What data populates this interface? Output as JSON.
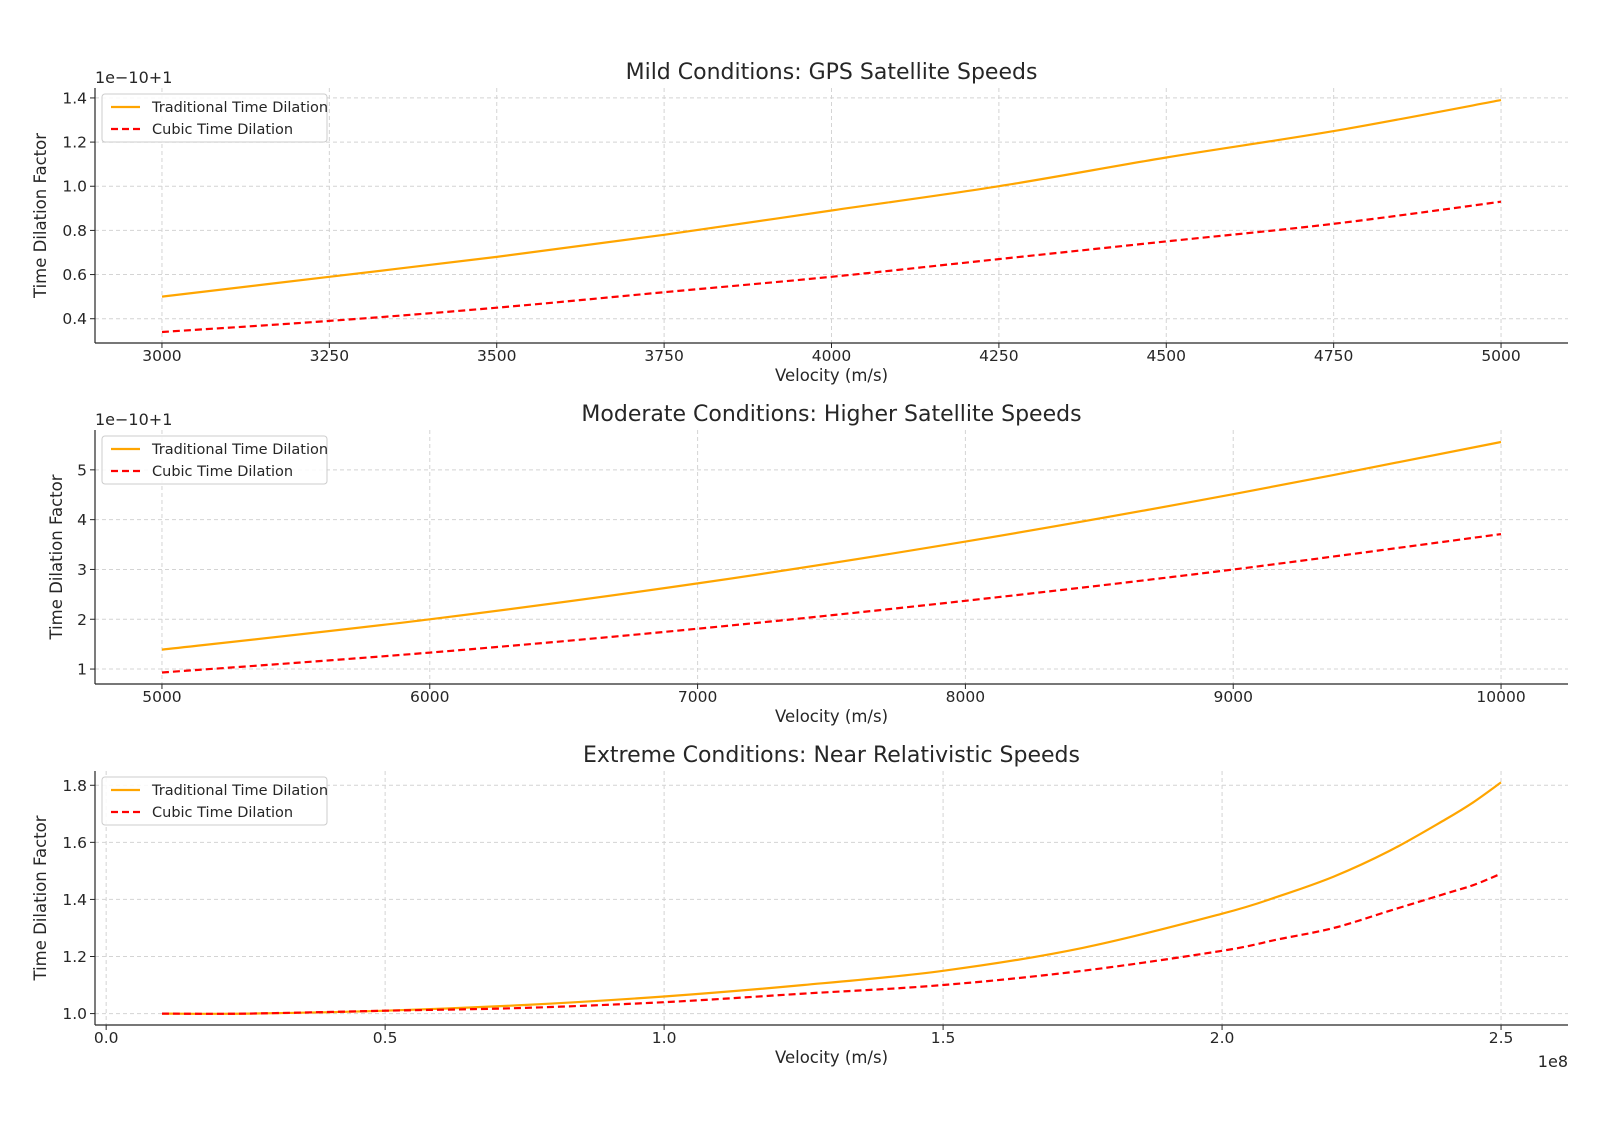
{
  "chart_data": [
    {
      "type": "line",
      "title": "Mild Conditions: GPS Satellite Speeds",
      "xlabel": "Velocity (m/s)",
      "ylabel": "Time Dilation Factor",
      "y_offset_text": "1e−10+1",
      "x_offset_text": "",
      "x_scale": "linear",
      "xlim": [
        2900,
        5100
      ],
      "ylim": [
        0.29,
        1.445
      ],
      "xticks": [
        3000,
        3250,
        3500,
        3750,
        4000,
        4250,
        4500,
        4750,
        5000
      ],
      "xtick_labels": [
        "3000",
        "3250",
        "3500",
        "3750",
        "4000",
        "4250",
        "4500",
        "4750",
        "5000"
      ],
      "yticks": [
        0.4,
        0.6,
        0.8,
        1.0,
        1.2,
        1.4
      ],
      "ytick_labels": [
        "0.4",
        "0.6",
        "0.8",
        "1.0",
        "1.2",
        "1.4"
      ],
      "grid": true,
      "legend_position": "top-left",
      "x": [
        3000,
        3250,
        3500,
        3750,
        4000,
        4250,
        4500,
        4750,
        5000
      ],
      "series": [
        {
          "name": "Traditional Time Dilation",
          "color": "#ffa500",
          "style": "solid",
          "values": [
            0.5,
            0.59,
            0.68,
            0.78,
            0.89,
            1.0,
            1.13,
            1.25,
            1.39
          ]
        },
        {
          "name": "Cubic Time Dilation",
          "color": "#ff0000",
          "style": "dashed",
          "values": [
            0.34,
            0.39,
            0.45,
            0.52,
            0.59,
            0.67,
            0.75,
            0.83,
            0.93
          ]
        }
      ]
    },
    {
      "type": "line",
      "title": "Moderate Conditions: Higher Satellite Speeds",
      "xlabel": "Velocity (m/s)",
      "ylabel": "Time Dilation Factor",
      "y_offset_text": "1e−10+1",
      "x_offset_text": "",
      "x_scale": "linear",
      "xlim": [
        4750,
        10250
      ],
      "ylim": [
        0.7,
        5.8
      ],
      "xticks": [
        5000,
        6000,
        7000,
        8000,
        9000,
        10000
      ],
      "xtick_labels": [
        "5000",
        "6000",
        "7000",
        "8000",
        "9000",
        "10000"
      ],
      "yticks": [
        1,
        2,
        3,
        4,
        5
      ],
      "ytick_labels": [
        "1",
        "2",
        "3",
        "4",
        "5"
      ],
      "grid": true,
      "legend_position": "top-left",
      "x": [
        5000,
        6000,
        7000,
        8000,
        9000,
        10000
      ],
      "series": [
        {
          "name": "Traditional Time Dilation",
          "color": "#ffa500",
          "style": "solid",
          "values": [
            1.39,
            2.0,
            2.72,
            3.56,
            4.51,
            5.56
          ]
        },
        {
          "name": "Cubic Time Dilation",
          "color": "#ff0000",
          "style": "dashed",
          "values": [
            0.93,
            1.33,
            1.81,
            2.37,
            3.0,
            3.71
          ]
        }
      ]
    },
    {
      "type": "line",
      "title": "Extreme Conditions: Near Relativistic Speeds",
      "xlabel": "Velocity (m/s)",
      "ylabel": "Time Dilation Factor",
      "y_offset_text": "",
      "x_offset_text": "1e8",
      "x_scale": "linear",
      "xlim": [
        -0.02,
        2.62
      ],
      "ylim": [
        0.96,
        1.85
      ],
      "xticks": [
        0.0,
        0.5,
        1.0,
        1.5,
        2.0,
        2.5
      ],
      "xtick_labels": [
        "0.0",
        "0.5",
        "1.0",
        "1.5",
        "2.0",
        "2.5"
      ],
      "yticks": [
        1.0,
        1.2,
        1.4,
        1.6,
        1.8
      ],
      "ytick_labels": [
        "1.0",
        "1.2",
        "1.4",
        "1.6",
        "1.8"
      ],
      "grid": true,
      "legend_position": "top-left",
      "x": [
        0.1,
        0.25,
        0.5,
        0.75,
        1.0,
        1.25,
        1.5,
        1.75,
        2.0,
        2.1,
        2.2,
        2.3,
        2.4,
        2.45,
        2.5
      ],
      "series": [
        {
          "name": "Traditional Time Dilation",
          "color": "#ffa500",
          "style": "solid",
          "values": [
            1.0,
            1.0,
            1.01,
            1.03,
            1.06,
            1.1,
            1.15,
            1.23,
            1.35,
            1.41,
            1.48,
            1.57,
            1.68,
            1.74,
            1.81
          ]
        },
        {
          "name": "Cubic Time Dilation",
          "color": "#ff0000",
          "style": "dashed",
          "values": [
            1.0,
            1.0,
            1.01,
            1.02,
            1.04,
            1.07,
            1.1,
            1.15,
            1.22,
            1.26,
            1.3,
            1.36,
            1.42,
            1.45,
            1.49
          ]
        }
      ]
    }
  ]
}
